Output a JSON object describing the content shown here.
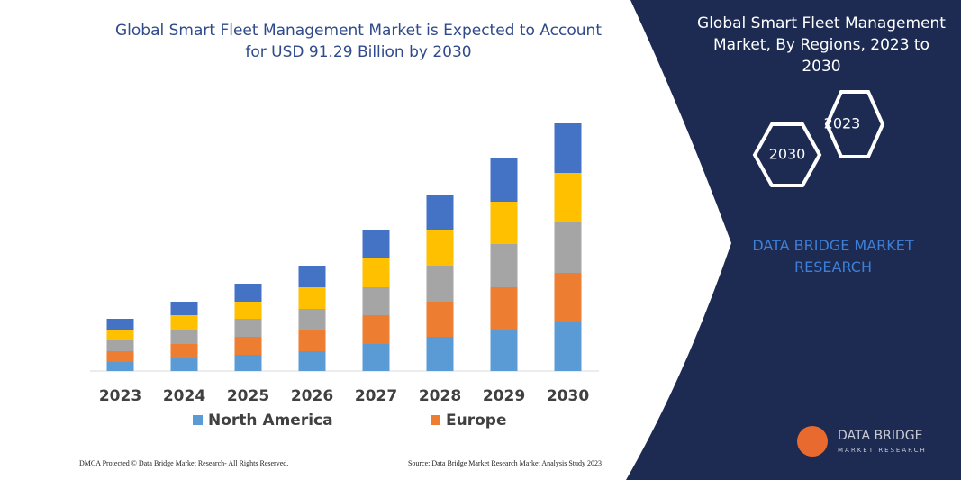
{
  "chart_data": {
    "type": "stacked_bar",
    "title": "Global Smart Fleet Management Market is Expected to Account for USD 91.29 Billion by 2030",
    "categories": [
      "2023",
      "2024",
      "2025",
      "2026",
      "2027",
      "2028",
      "2029",
      "2030"
    ],
    "series": [
      {
        "name": "North America",
        "color": "#5b9bd5",
        "values": [
          10,
          14,
          18,
          22,
          30,
          38,
          46,
          54
        ]
      },
      {
        "name": "Europe",
        "color": "#ed7d31",
        "values": [
          12,
          16,
          20,
          24,
          32,
          39,
          47,
          55
        ]
      },
      {
        "color": "#a5a5a5",
        "values": [
          12,
          16,
          20,
          23,
          31,
          40,
          48,
          56
        ]
      },
      {
        "color": "#ffc000",
        "values": [
          12,
          16,
          19,
          24,
          32,
          40,
          47,
          55
        ]
      },
      {
        "color": "#4472c4",
        "values": [
          12,
          15,
          20,
          24,
          32,
          39,
          48,
          55
        ]
      }
    ],
    "ylim": [
      0,
      300
    ]
  },
  "panel": {
    "title": "Global Smart Fleet Management Market, By Regions, 2023 to 2030",
    "hex_start": "2023",
    "hex_end": "2030",
    "brand": "DATA BRIDGE MARKET RESEARCH"
  },
  "logo": {
    "name": "DATA BRIDGE",
    "tagline": "MARKET RESEARCH"
  },
  "footer": {
    "left": "DMCA Protected © Data Bridge Market Research-  All Rights Reserved.",
    "right": "Source: Data Bridge Market Research  Market Analysis Study 2023"
  }
}
